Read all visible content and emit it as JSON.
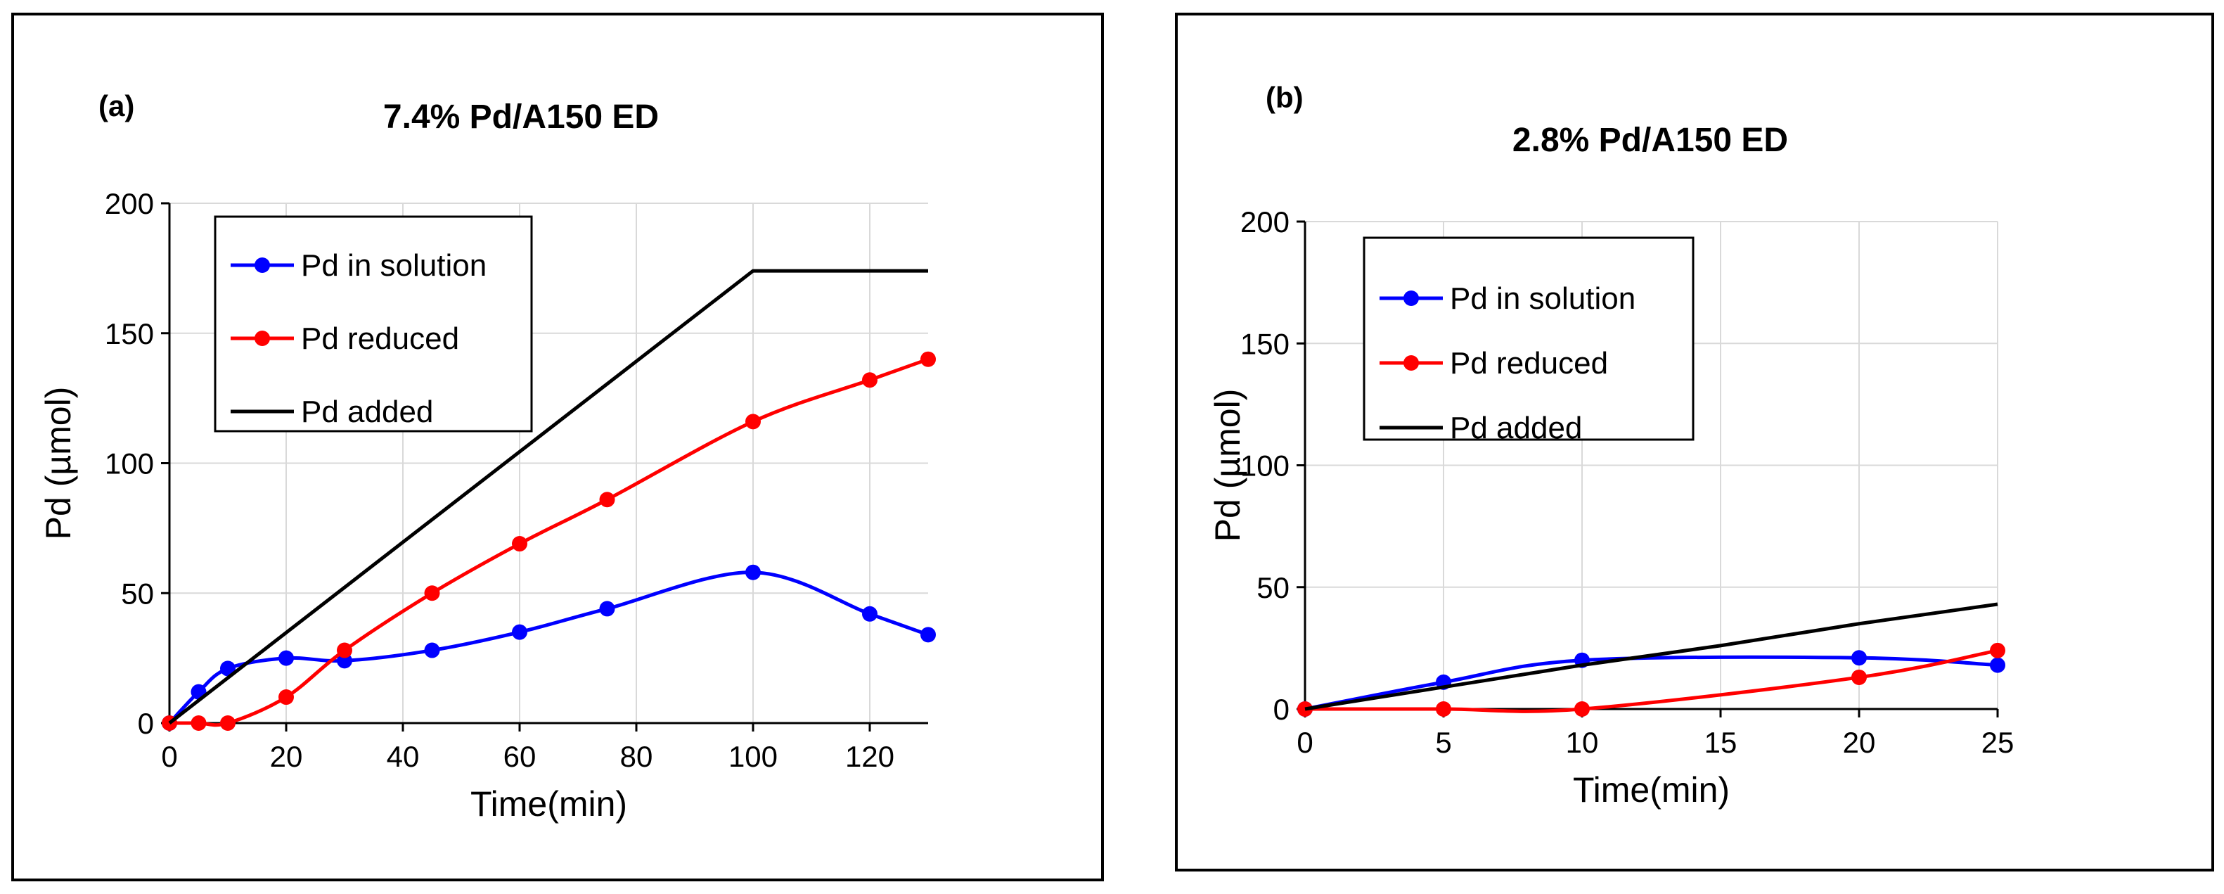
{
  "chart_data": [
    {
      "type": "line",
      "panel_label": "(a)",
      "title": "7.4% Pd/A150 ED",
      "xlabel": "Time(min)",
      "ylabel": "Pd (µmol)",
      "xlim": [
        0,
        130
      ],
      "ylim": [
        0,
        200
      ],
      "xticks": [
        0,
        20,
        40,
        60,
        80,
        100,
        120
      ],
      "yticks": [
        0,
        50,
        100,
        150,
        200
      ],
      "grid": true,
      "legend_position": "top-left",
      "series": [
        {
          "name": "Pd in solution",
          "color": "#0000ff",
          "markers": true,
          "x": [
            0,
            5,
            10,
            20,
            30,
            45,
            60,
            75,
            100,
            120,
            130
          ],
          "y": [
            0,
            12,
            21,
            25,
            24,
            28,
            35,
            44,
            58,
            42,
            34
          ]
        },
        {
          "name": "Pd reduced",
          "color": "#ff0000",
          "markers": true,
          "x": [
            0,
            5,
            10,
            20,
            30,
            45,
            60,
            75,
            100,
            120,
            130
          ],
          "y": [
            0,
            0,
            0,
            10,
            28,
            50,
            69,
            86,
            116,
            132,
            140
          ]
        },
        {
          "name": "Pd added",
          "color": "#000000",
          "markers": false,
          "x": [
            0,
            100,
            130
          ],
          "y": [
            0,
            174,
            174
          ]
        }
      ]
    },
    {
      "type": "line",
      "panel_label": "(b)",
      "title": "2.8% Pd/A150 ED",
      "xlabel": "Time(min)",
      "ylabel": "Pd (µmol)",
      "xlim": [
        0,
        25
      ],
      "ylim": [
        0,
        200
      ],
      "xticks": [
        0,
        5,
        10,
        15,
        20,
        25
      ],
      "yticks": [
        0,
        50,
        100,
        150,
        200
      ],
      "grid": true,
      "legend_position": "top-left",
      "series": [
        {
          "name": "Pd in solution",
          "color": "#0000ff",
          "markers": true,
          "x": [
            0,
            5,
            10,
            20,
            25
          ],
          "y": [
            0,
            11,
            20,
            21,
            18
          ]
        },
        {
          "name": "Pd reduced",
          "color": "#ff0000",
          "markers": true,
          "x": [
            0,
            5,
            10,
            20,
            25
          ],
          "y": [
            0,
            0,
            0,
            13,
            24
          ]
        },
        {
          "name": "Pd added",
          "color": "#000000",
          "markers": false,
          "x": [
            0,
            5,
            10,
            15,
            20,
            25
          ],
          "y": [
            0,
            9,
            18,
            26,
            35,
            43
          ]
        }
      ]
    }
  ]
}
